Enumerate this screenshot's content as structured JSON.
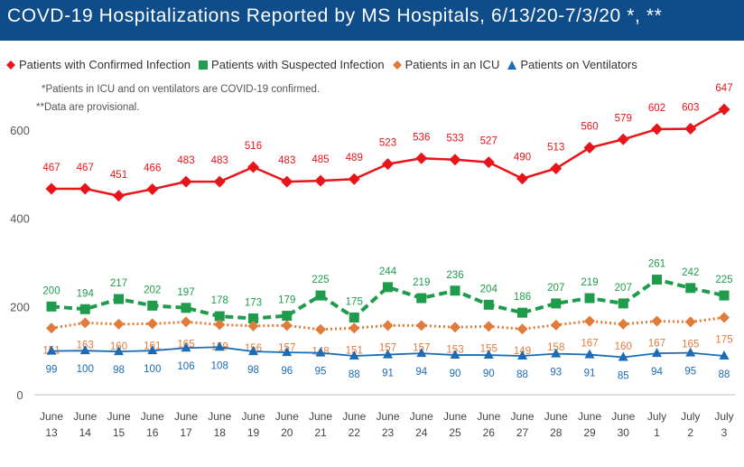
{
  "title": "COVD-19 Hospitalizations Reported by MS Hospitals, 6/13/20-7/3/20 *, **",
  "notes": {
    "icu_note": "*Patients in ICU and on ventilators are COVID-19 confirmed.",
    "provisional_note": "**Data are provisional."
  },
  "colors": {
    "confirmed": "#e8141a",
    "suspected": "#1f9c4b",
    "icu": "#e07b39",
    "ventilators": "#1b6bb5",
    "title_bar": "#0f4c8a"
  },
  "chart_data": {
    "type": "line",
    "title": "COVD-19 Hospitalizations Reported by MS Hospitals, 6/13/20-7/3/20 *, **",
    "xlabel": "",
    "ylabel": "",
    "ylim": [
      0,
      700
    ],
    "yticks": [
      0,
      200,
      400,
      600
    ],
    "grid": false,
    "legend_position": "top-left",
    "categories": [
      [
        "June",
        "13"
      ],
      [
        "June",
        "14"
      ],
      [
        "June",
        "15"
      ],
      [
        "June",
        "16"
      ],
      [
        "June",
        "17"
      ],
      [
        "June",
        "18"
      ],
      [
        "June",
        "19"
      ],
      [
        "June",
        "20"
      ],
      [
        "June",
        "21"
      ],
      [
        "June",
        "22"
      ],
      [
        "June",
        "23"
      ],
      [
        "June",
        "24"
      ],
      [
        "June",
        "25"
      ],
      [
        "June",
        "26"
      ],
      [
        "June",
        "27"
      ],
      [
        "June",
        "28"
      ],
      [
        "June",
        "29"
      ],
      [
        "June",
        "30"
      ],
      [
        "July",
        "1"
      ],
      [
        "July",
        "2"
      ],
      [
        "July",
        "3"
      ]
    ],
    "series": [
      {
        "key": "confirmed",
        "name": "Patients with Confirmed Infection",
        "marker": "diamond",
        "line": "solid",
        "values": [
          467,
          467,
          451,
          466,
          483,
          483,
          516,
          483,
          485,
          489,
          523,
          536,
          533,
          527,
          490,
          513,
          560,
          579,
          602,
          603,
          647
        ]
      },
      {
        "key": "suspected",
        "name": "Patients with Suspected Infection",
        "marker": "square",
        "line": "dashed",
        "values": [
          200,
          194,
          217,
          202,
          197,
          178,
          173,
          179,
          225,
          175,
          244,
          219,
          236,
          204,
          186,
          207,
          219,
          207,
          261,
          242,
          225
        ]
      },
      {
        "key": "icu",
        "name": "Patients in an ICU",
        "marker": "diamond",
        "line": "dotted",
        "values": [
          151,
          163,
          160,
          161,
          165,
          159,
          156,
          157,
          148,
          151,
          157,
          157,
          153,
          155,
          149,
          158,
          167,
          160,
          167,
          165,
          175
        ]
      },
      {
        "key": "ventilators",
        "name": "Patients on Ventilators",
        "marker": "triangle",
        "line": "solid",
        "values": [
          99,
          100,
          98,
          100,
          106,
          108,
          98,
          96,
          95,
          88,
          91,
          94,
          90,
          90,
          88,
          93,
          91,
          85,
          94,
          95,
          88
        ]
      }
    ]
  }
}
